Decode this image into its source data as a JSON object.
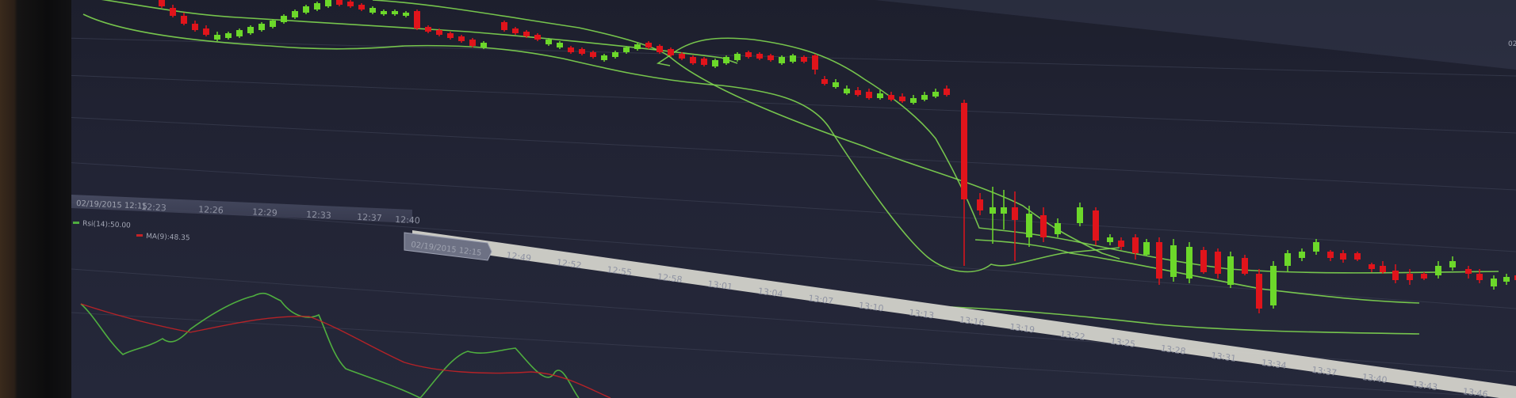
{
  "colors": {
    "bull": "#6cd82a",
    "bear": "#e0141b",
    "band": "#7fd650",
    "rsi": "#4fae3f",
    "ma": "#c42226",
    "grid": "#3b3f52",
    "axis_strip": "#464a61"
  },
  "main_chart": {
    "type": "candlestick",
    "bollinger_bands": true
  },
  "time_axis": {
    "tooltip_top": "02/19/2015 12:15",
    "tooltip_bottom": "02/19/2015 12:15",
    "labels_top": [
      "12:23",
      "12:26",
      "12:29",
      "12:33",
      "12:37",
      "12:40"
    ],
    "labels_bottom": [
      "12:49",
      "12:52",
      "12:55",
      "12:58",
      "13:01",
      "13:04",
      "13:07",
      "13:10",
      "13:13",
      "13:16",
      "13:19",
      "13:22",
      "13:25",
      "13:28",
      "13:31",
      "13:34",
      "13:37",
      "13:40",
      "13:43",
      "13:46"
    ]
  },
  "indicator_legend": {
    "rsi": "Rsi(14):50.00",
    "ma": "MA(9):48.35"
  },
  "corner_label": "02"
}
